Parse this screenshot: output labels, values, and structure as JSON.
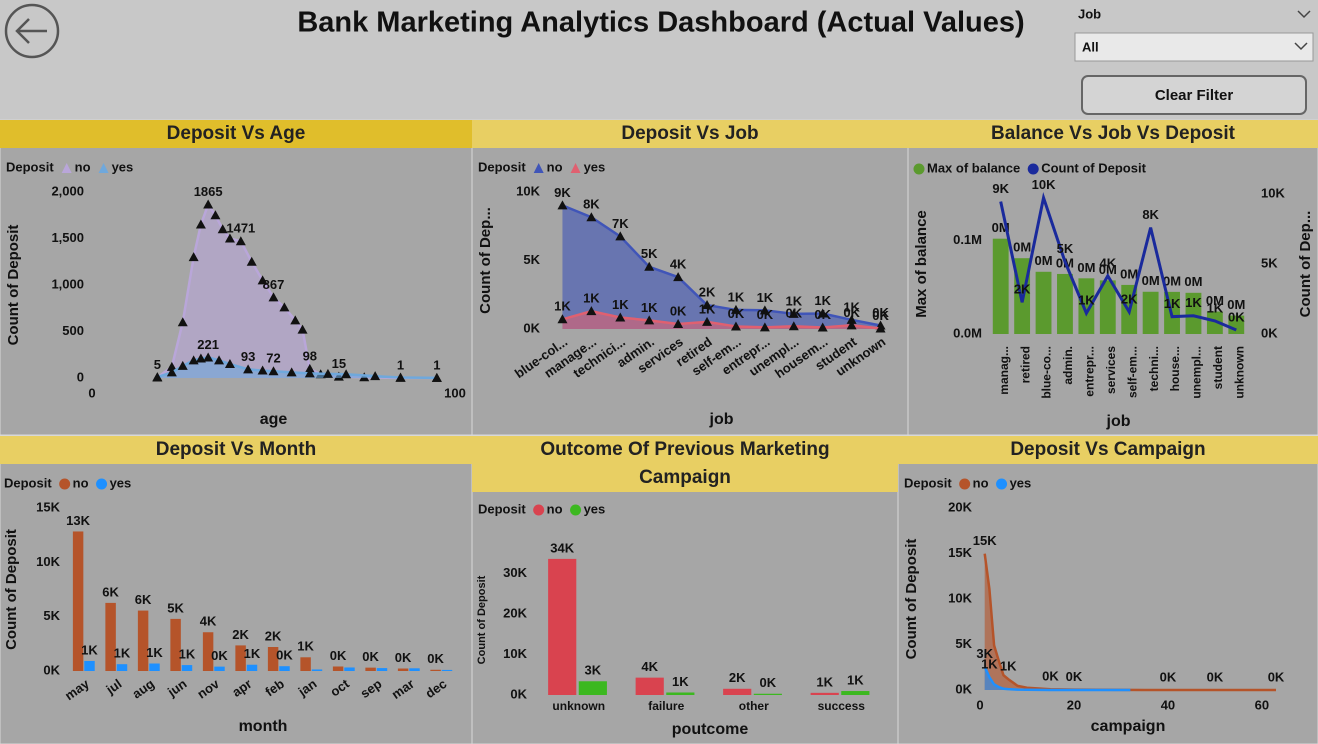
{
  "header": {
    "title": "Bank Marketing Analytics Dashboard (Actual Values)"
  },
  "filter": {
    "label": "Job",
    "value": "All"
  },
  "button": {
    "label": "Clear Filter"
  },
  "chart_data": [
    {
      "type": "area",
      "title": "Deposit Vs Age",
      "legend_title": "Deposit",
      "x_label": "age",
      "y_label": "Count of Deposit",
      "marker": "triangle",
      "legend_marker": "triangle",
      "xlim": [
        0,
        100
      ],
      "xticks": [
        0,
        100
      ],
      "ylim": [
        0,
        2000
      ],
      "yticks": [
        0,
        500,
        {
          "value": 1000,
          "label": "1,000"
        },
        {
          "value": 1500,
          "label": "1,500"
        },
        {
          "value": 2000,
          "label": "2,000"
        }
      ],
      "series": [
        {
          "name": "no",
          "color": "#b9a6d9",
          "x": [
            18,
            22,
            25,
            28,
            30,
            32,
            34,
            36,
            38,
            41,
            44,
            47,
            50,
            53,
            56,
            58,
            60,
            63,
            68,
            75,
            85,
            95
          ],
          "values": [
            5,
            120,
            600,
            1300,
            1650,
            1865,
            1750,
            1600,
            1500,
            1471,
            1250,
            1050,
            867,
            760,
            620,
            520,
            98,
            40,
            15,
            8,
            1,
            1
          ],
          "value_labels": [
            "5",
            null,
            null,
            null,
            null,
            "1865",
            null,
            null,
            null,
            "1471",
            null,
            null,
            "867",
            null,
            null,
            null,
            "98",
            null,
            "15",
            null,
            "1",
            "1"
          ]
        },
        {
          "name": "yes",
          "color": "#6fa8dc",
          "x": [
            18,
            22,
            25,
            28,
            30,
            32,
            35,
            38,
            43,
            47,
            50,
            55,
            60,
            65,
            70,
            78,
            85,
            95
          ],
          "values": [
            10,
            60,
            130,
            190,
            210,
            221,
            190,
            150,
            93,
            80,
            72,
            60,
            50,
            45,
            40,
            20,
            5,
            1
          ],
          "value_labels": [
            null,
            null,
            null,
            null,
            null,
            "221",
            null,
            null,
            "93",
            null,
            "72",
            null,
            null,
            null,
            null,
            null,
            null,
            null
          ]
        }
      ]
    },
    {
      "type": "area",
      "title": "Deposit Vs Job",
      "legend_title": "Deposit",
      "x_label": "job",
      "y_label": "Count of Dep...",
      "marker": "triangle",
      "legend_marker": "triangle",
      "categories": [
        "blue-col...",
        "manage...",
        "technici...",
        "admin.",
        "services",
        "retired",
        "self-em...",
        "entrepr...",
        "unempl...",
        "housem...",
        "student",
        "unknown"
      ],
      "ylim": [
        0,
        10000
      ],
      "yticks": [
        {
          "value": 0,
          "label": "0K"
        },
        {
          "value": 5000,
          "label": "5K"
        },
        {
          "value": 10000,
          "label": "10K"
        }
      ],
      "series": [
        {
          "name": "no",
          "color": "#4055b8",
          "values": [
            9024,
            8157,
            6757,
            4540,
            3785,
            1748,
            1392,
            1364,
            1101,
            1131,
            669,
            254
          ],
          "value_labels": [
            "9K",
            "8K",
            "7K",
            "5K",
            "4K",
            "2K",
            "1K",
            "1K",
            "1K",
            "1K",
            "1K",
            "0K"
          ]
        },
        {
          "name": "yes",
          "color": "#e06070",
          "values": [
            708,
            1301,
            840,
            631,
            369,
            516,
            187,
            123,
            202,
            109,
            269,
            34
          ],
          "value_labels": [
            "1K",
            "1K",
            "1K",
            "1K",
            "0K",
            "1K",
            "0K",
            "0K",
            "0K",
            "0K",
            "0K",
            "0K"
          ]
        }
      ]
    },
    {
      "type": "combo",
      "title": "Balance Vs Job Vs Deposit",
      "x_label": "job",
      "y_label": "Max of balance",
      "y2_label": "Count of Dep...",
      "legend_marker": "circle",
      "categories": [
        "manag...",
        "retired",
        "blue-co...",
        "admin.",
        "entrepr...",
        "services",
        "self-em...",
        "techni...",
        "house...",
        "unempl...",
        "student",
        "unknown"
      ],
      "ylim": [
        0,
        150000
      ],
      "yticks": [
        {
          "value": 0,
          "label": "0.0M"
        },
        {
          "value": 100000,
          "label": "0.1M"
        }
      ],
      "y2lim": [
        0,
        10000
      ],
      "y2ticks": [
        {
          "value": 0,
          "label": "0K"
        },
        {
          "value": 5000,
          "label": "5K"
        },
        {
          "value": 10000,
          "label": "10K"
        }
      ],
      "series": [
        {
          "name": "Max of balance",
          "color": "#5b9a2e",
          "values": [
            102127,
            81204,
            66653,
            64343,
            59649,
            57435,
            52587,
            45248,
            45141,
            44134,
            24025,
            19706
          ],
          "value_labels": [
            "0M",
            "0M",
            "0M",
            "0M",
            "0M",
            "0M",
            "0M",
            "0M",
            "0M",
            "0M",
            "0M",
            "0M"
          ]
        },
        {
          "name": "Count of Deposit",
          "color": "#1a2a9c",
          "axis": "y2",
          "values": [
            9458,
            2264,
            9732,
            5171,
            1487,
            4154,
            1579,
            7597,
            1240,
            1303,
            938,
            288
          ],
          "value_labels": [
            "9K",
            "2K",
            "10K",
            "5K",
            "1K",
            "4K",
            "2K",
            "8K",
            "1K",
            "1K",
            "1K",
            "0K"
          ]
        }
      ]
    },
    {
      "type": "bar",
      "title": "Deposit Vs Month",
      "legend_title": "Deposit",
      "x_label": "month",
      "y_label": "Count of Deposit",
      "legend_marker": "circle",
      "categories": [
        "may",
        "jul",
        "aug",
        "jun",
        "nov",
        "apr",
        "feb",
        "jan",
        "oct",
        "sep",
        "mar",
        "dec"
      ],
      "ylim": [
        0,
        15000
      ],
      "yticks": [
        {
          "value": 0,
          "label": "0K"
        },
        {
          "value": 5000,
          "label": "5K"
        },
        {
          "value": 10000,
          "label": "10K"
        },
        {
          "value": 15000,
          "label": "15K"
        }
      ],
      "series": [
        {
          "name": "no",
          "color": "#b5542a",
          "values": [
            12841,
            6268,
            5559,
            4795,
            3567,
            2355,
            2208,
            1261,
            415,
            310,
            229,
            114
          ],
          "value_labels": [
            "13K",
            "6K",
            "6K",
            "5K",
            "4K",
            "2K",
            "2K",
            "1K",
            "0K",
            "0K",
            "0K",
            "0K"
          ]
        },
        {
          "name": "yes",
          "color": "#1e90ff",
          "values": [
            925,
            627,
            688,
            546,
            403,
            577,
            441,
            142,
            323,
            269,
            248,
            100
          ],
          "value_labels": [
            "1K",
            "1K",
            "1K",
            "1K",
            "0K",
            "1K",
            "0K",
            null,
            null,
            null,
            null,
            null
          ]
        }
      ]
    },
    {
      "type": "bar",
      "title": "Outcome Of Previous Marketing Campaign",
      "legend_title": "Deposit",
      "x_label": "poutcome",
      "y_label": "Count of Deposit",
      "legend_marker": "circle",
      "categories": [
        "unknown",
        "failure",
        "other",
        "success"
      ],
      "ylim": [
        0,
        37000
      ],
      "yticks": [
        {
          "value": 0,
          "label": "0K"
        },
        {
          "value": 10000,
          "label": "10K"
        },
        {
          "value": 20000,
          "label": "20K"
        },
        {
          "value": 30000,
          "label": "30K"
        }
      ],
      "series": [
        {
          "name": "no",
          "color": "#d9434f",
          "values": [
            33573,
            4283,
            1533,
            533
          ],
          "value_labels": [
            "34K",
            "4K",
            "2K",
            "1K"
          ]
        },
        {
          "name": "yes",
          "color": "#3cb820",
          "values": [
            3386,
            618,
            307,
            978
          ],
          "value_labels": [
            "3K",
            "1K",
            "0K",
            "1K"
          ]
        }
      ]
    },
    {
      "type": "area",
      "title": "Deposit Vs Campaign",
      "legend_title": "Deposit",
      "x_label": "campaign",
      "y_label": "Count of Deposit",
      "legend_marker": "circle",
      "xlim": [
        0,
        63
      ],
      "xticks": [
        0,
        20,
        40,
        60
      ],
      "ylim": [
        0,
        20000
      ],
      "yticks": [
        {
          "value": 0,
          "label": "0K"
        },
        {
          "value": 5000,
          "label": "5K"
        },
        {
          "value": 10000,
          "label": "10K"
        },
        {
          "value": 15000,
          "label": "15K"
        },
        {
          "value": 20000,
          "label": "20K"
        }
      ],
      "series": [
        {
          "name": "no",
          "color": "#b5542a",
          "x": [
            1,
            2,
            3,
            4,
            5,
            6,
            8,
            10,
            15,
            20,
            30,
            40,
            50,
            63
          ],
          "values": [
            14983,
            11104,
            4903,
            3205,
            1625,
            1199,
            453,
            252,
            80,
            40,
            10,
            2,
            2,
            1
          ],
          "value_labels": [
            "15K",
            null,
            null,
            null,
            null,
            "1K",
            null,
            null,
            "0K",
            "0K",
            null,
            "0K",
            "0K",
            "0K"
          ]
        },
        {
          "name": "yes",
          "color": "#1e90ff",
          "x": [
            1,
            2,
            3,
            4,
            5,
            6,
            8,
            10,
            15,
            20,
            32
          ],
          "values": [
            2561,
            1401,
            618,
            317,
            139,
            92,
            35,
            25,
            5,
            1,
            1
          ],
          "value_labels": [
            "3K",
            "1K",
            null,
            null,
            null,
            null,
            null,
            null,
            null,
            null,
            null
          ]
        }
      ]
    }
  ]
}
